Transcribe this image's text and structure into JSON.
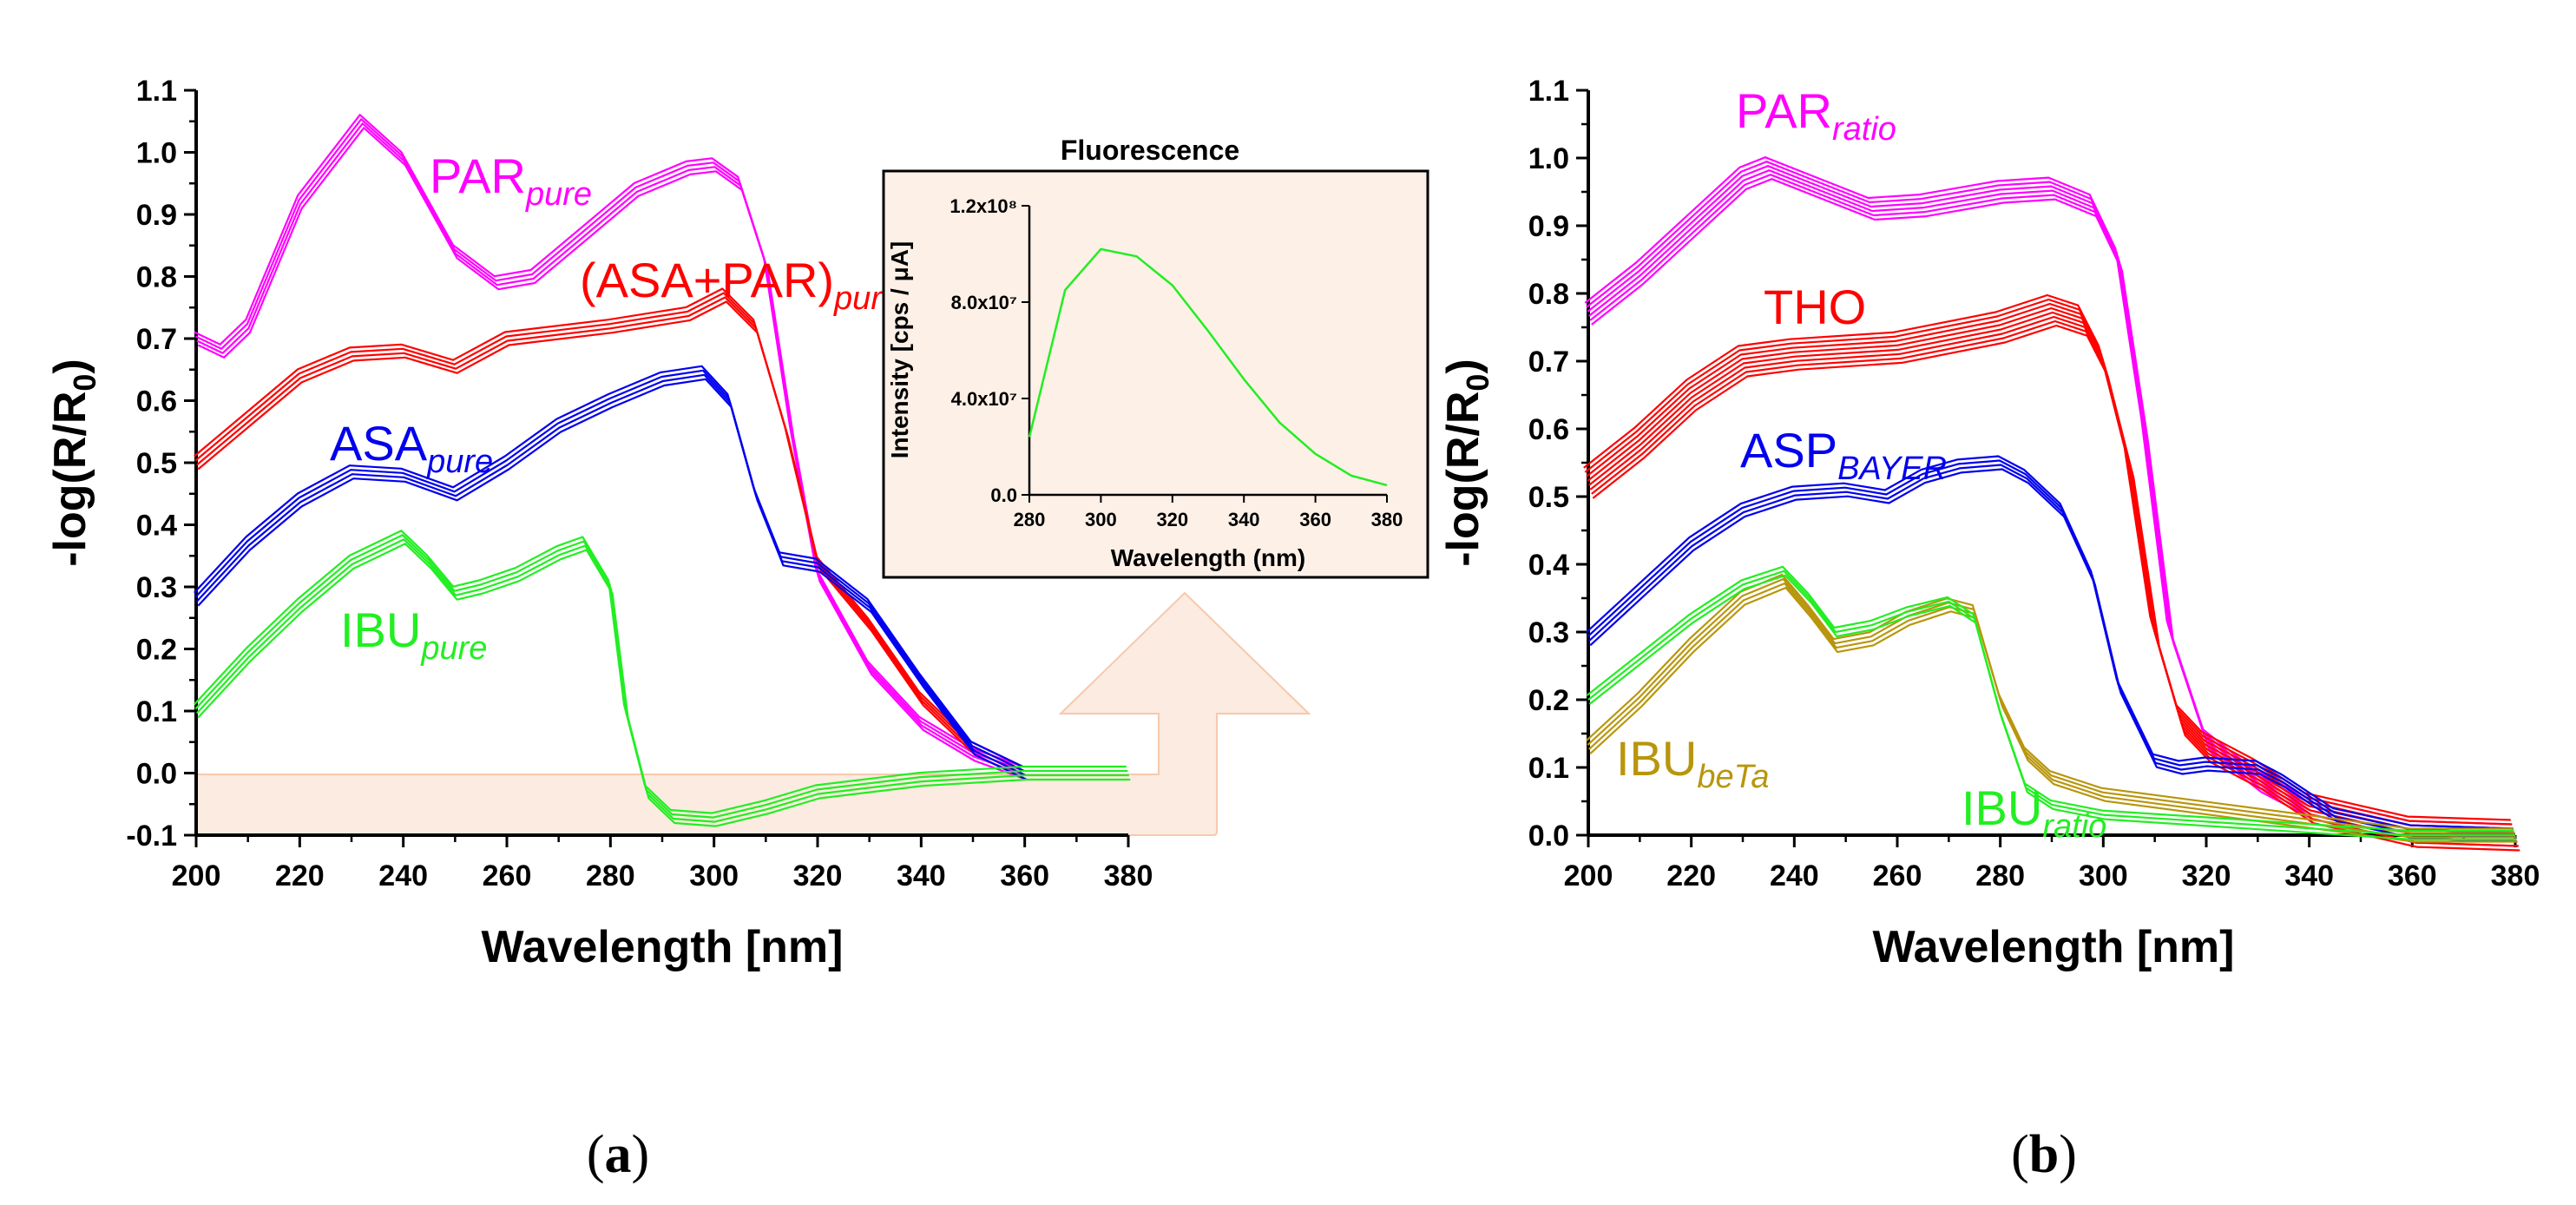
{
  "figure": {
    "caption_a": "a",
    "caption_b": "b"
  },
  "chart_data": [
    {
      "id": "panel_a",
      "type": "line",
      "xlabel": "Wavelength [nm]",
      "ylabel": "-log(R/R0)",
      "ylabel_main": "-log(R/R",
      "ylabel_sub": "0",
      "ylabel_close": ")",
      "xlim": [
        200,
        380
      ],
      "ylim": [
        -0.1,
        1.1
      ],
      "xticks": [
        200,
        220,
        240,
        260,
        280,
        300,
        320,
        340,
        360,
        380
      ],
      "yticks": [
        -0.1,
        0.0,
        0.1,
        0.2,
        0.3,
        0.4,
        0.5,
        0.6,
        0.7,
        0.8,
        0.9,
        1.0,
        1.1
      ],
      "series": [
        {
          "name": "PARpure",
          "label_main": "PAR",
          "label_sub": "pure",
          "color": "#ff00ff",
          "replicates": 4,
          "x": [
            200,
            205,
            210,
            220,
            232,
            240,
            250,
            258,
            265,
            275,
            285,
            295,
            300,
            305,
            310,
            315,
            320,
            330,
            340,
            350,
            360
          ],
          "y": [
            0.7,
            0.68,
            0.72,
            0.92,
            1.05,
            0.99,
            0.84,
            0.79,
            0.8,
            0.87,
            0.94,
            0.975,
            0.98,
            0.95,
            0.82,
            0.55,
            0.32,
            0.17,
            0.08,
            0.03,
            0.0
          ]
        },
        {
          "name": "(ASA+PAR)pure",
          "label_main": "(ASA+PAR)",
          "label_sub": "pure",
          "color": "#ff0000",
          "replicates": 4,
          "x": [
            200,
            210,
            220,
            230,
            240,
            250,
            260,
            280,
            295,
            302,
            308,
            314,
            320,
            330,
            340,
            350,
            360
          ],
          "y": [
            0.5,
            0.57,
            0.64,
            0.675,
            0.68,
            0.655,
            0.7,
            0.72,
            0.74,
            0.77,
            0.72,
            0.55,
            0.34,
            0.24,
            0.12,
            0.04,
            0.0
          ]
        },
        {
          "name": "ASApure",
          "label_main": "ASA",
          "label_sub": "pure",
          "color": "#0000ee",
          "replicates": 4,
          "x": [
            200,
            210,
            220,
            230,
            240,
            250,
            260,
            270,
            280,
            290,
            298,
            303,
            308,
            313,
            320,
            330,
            340,
            350,
            360
          ],
          "y": [
            0.28,
            0.37,
            0.44,
            0.485,
            0.48,
            0.45,
            0.5,
            0.56,
            0.6,
            0.635,
            0.645,
            0.6,
            0.45,
            0.345,
            0.335,
            0.27,
            0.15,
            0.04,
            0.0
          ]
        },
        {
          "name": "IBUpure",
          "label_main": "IBU",
          "label_sub": "pure",
          "color": "#22ee22",
          "replicates": 4,
          "x": [
            200,
            210,
            220,
            230,
            240,
            245,
            250,
            255,
            262,
            270,
            275,
            280,
            283,
            287,
            292,
            300,
            310,
            320,
            340,
            360,
            380
          ],
          "y": [
            0.1,
            0.19,
            0.27,
            0.34,
            0.38,
            0.34,
            0.29,
            0.3,
            0.32,
            0.355,
            0.37,
            0.3,
            0.1,
            -0.03,
            -0.07,
            -0.075,
            -0.055,
            -0.03,
            -0.01,
            0.0,
            0.0
          ]
        }
      ],
      "inset": {
        "type": "line",
        "title": "Fluorescence",
        "xlabel": "Wavelength (nm)",
        "ylabel": "Intensity [cps / μA]",
        "xlim": [
          280,
          380
        ],
        "ylim": [
          0,
          120000000
        ],
        "xticks": [
          280,
          300,
          320,
          340,
          360,
          380
        ],
        "ytick_labels": [
          "0.0",
          "4.0x10⁷",
          "8.0x10⁷",
          "1.2x10⁸"
        ],
        "yticks": [
          0,
          40000000,
          80000000,
          120000000
        ],
        "color": "#22ee22",
        "x": [
          280,
          290,
          300,
          310,
          320,
          330,
          340,
          350,
          360,
          370,
          380
        ],
        "y": [
          24000000,
          85000000,
          102000000,
          99000000,
          87000000,
          68000000,
          48000000,
          30000000,
          17000000,
          8000000,
          4000000
        ]
      }
    },
    {
      "id": "panel_b",
      "type": "line",
      "xlabel": "Wavelength [nm]",
      "ylabel": "-log(R/R0)",
      "ylabel_main": "-log(R/R",
      "ylabel_sub": "0",
      "ylabel_close": ")",
      "xlim": [
        200,
        380
      ],
      "ylim": [
        0.0,
        1.1
      ],
      "xticks": [
        200,
        220,
        240,
        260,
        280,
        300,
        320,
        340,
        360,
        380
      ],
      "yticks": [
        0.0,
        0.1,
        0.2,
        0.3,
        0.4,
        0.5,
        0.6,
        0.7,
        0.8,
        0.9,
        1.0,
        1.1
      ],
      "series": [
        {
          "name": "PARratio",
          "label_main": "PAR",
          "label_sub": "ratio",
          "color": "#ff00ff",
          "replicates": 6,
          "x": [
            200,
            210,
            220,
            230,
            235,
            245,
            255,
            265,
            280,
            290,
            298,
            303,
            308,
            313,
            320,
            330,
            340,
            360,
            380
          ],
          "y": [
            0.77,
            0.83,
            0.9,
            0.97,
            0.985,
            0.955,
            0.925,
            0.93,
            0.95,
            0.955,
            0.93,
            0.85,
            0.6,
            0.3,
            0.14,
            0.08,
            0.04,
            0.005,
            0.0
          ]
        },
        {
          "name": "THO",
          "label_main": "THO",
          "label_sub": "",
          "color": "#ff0000",
          "replicates": 8,
          "x": [
            200,
            210,
            220,
            230,
            240,
            260,
            280,
            290,
            296,
            300,
            305,
            310,
            315,
            320,
            330,
            340,
            360,
            380
          ],
          "y": [
            0.52,
            0.58,
            0.65,
            0.7,
            0.71,
            0.72,
            0.75,
            0.775,
            0.76,
            0.7,
            0.55,
            0.3,
            0.17,
            0.13,
            0.09,
            0.04,
            0.005,
            0.0
          ]
        },
        {
          "name": "ASPBAYER",
          "label_main": "ASP",
          "label_sub": "BAYER",
          "color": "#0000ee",
          "replicates": 4,
          "x": [
            200,
            210,
            220,
            230,
            240,
            250,
            258,
            265,
            272,
            280,
            285,
            292,
            298,
            303,
            310,
            315,
            320,
            330,
            335,
            345,
            360,
            380
          ],
          "y": [
            0.29,
            0.36,
            0.43,
            0.48,
            0.505,
            0.51,
            0.5,
            0.53,
            0.545,
            0.55,
            0.53,
            0.48,
            0.38,
            0.22,
            0.11,
            0.1,
            0.105,
            0.1,
            0.08,
            0.03,
            0.005,
            0.0
          ]
        },
        {
          "name": "IBUbeTa",
          "label_main": "IBU",
          "label_sub": "beTa",
          "color": "#b8960c",
          "replicates": 4,
          "x": [
            200,
            210,
            220,
            230,
            238,
            243,
            248,
            255,
            262,
            270,
            275,
            280,
            285,
            290,
            300,
            320,
            340,
            350,
            360,
            380
          ],
          "y": [
            0.13,
            0.2,
            0.28,
            0.35,
            0.375,
            0.33,
            0.28,
            0.29,
            0.32,
            0.34,
            0.33,
            0.2,
            0.12,
            0.085,
            0.06,
            0.04,
            0.02,
            0.01,
            0.0,
            0.0
          ]
        },
        {
          "name": "IBUratio",
          "label_main": "IBU",
          "label_sub": "ratio",
          "color": "#22ee22",
          "replicates": 3,
          "x": [
            200,
            210,
            220,
            230,
            238,
            243,
            248,
            255,
            262,
            270,
            275,
            280,
            285,
            290,
            300,
            320,
            340,
            350,
            360,
            380
          ],
          "y": [
            0.2,
            0.26,
            0.32,
            0.37,
            0.39,
            0.35,
            0.3,
            0.31,
            0.33,
            0.345,
            0.32,
            0.18,
            0.07,
            0.045,
            0.03,
            0.02,
            0.01,
            0.005,
            0.0,
            0.0
          ]
        }
      ]
    }
  ]
}
